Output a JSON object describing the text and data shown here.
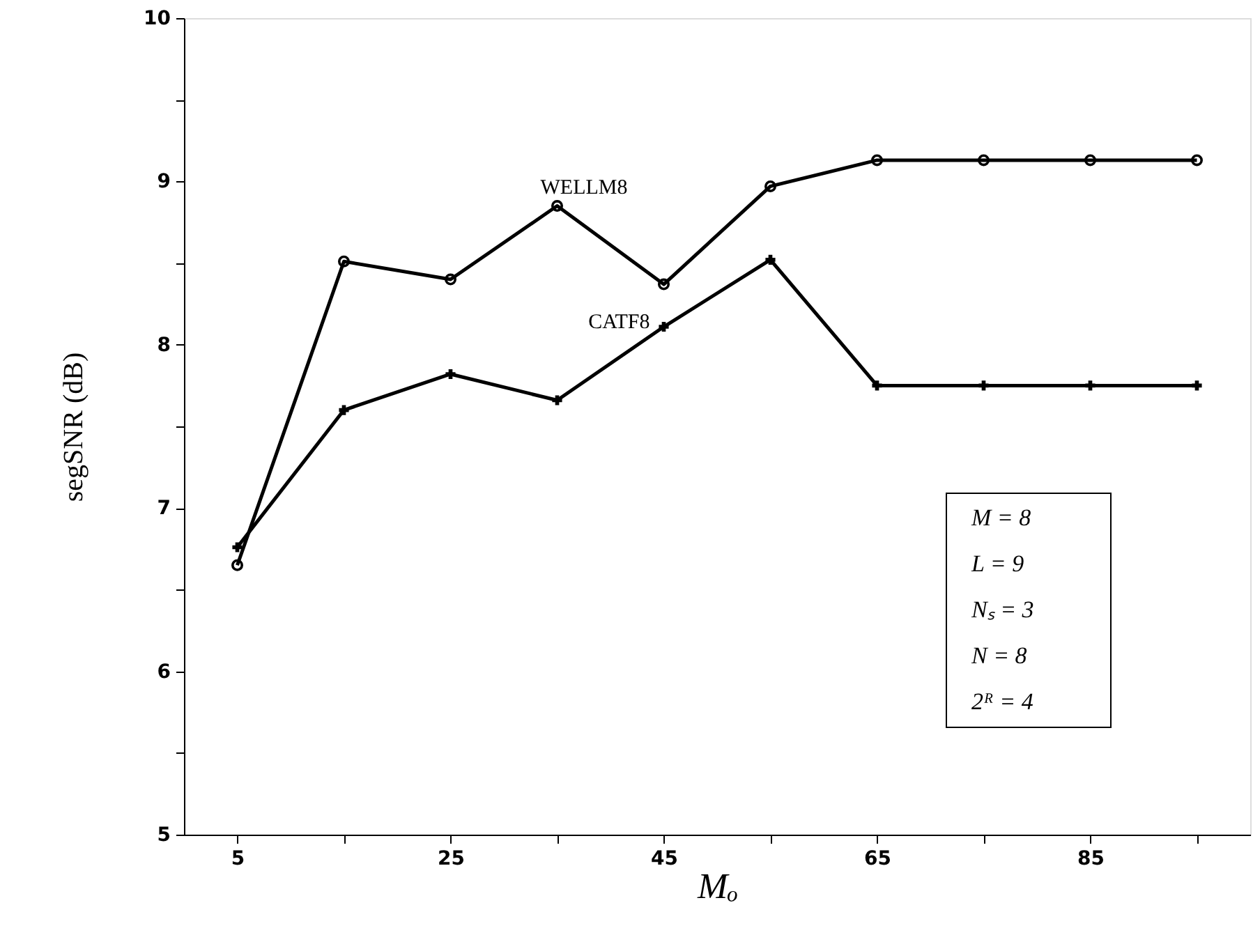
{
  "chart_data": {
    "type": "line",
    "xlabel": "Mₒ",
    "ylabel": "segSNR (dB)",
    "x": [
      5,
      15,
      25,
      35,
      45,
      55,
      65,
      75,
      85,
      95
    ],
    "series": [
      {
        "name": "WELLM8",
        "color": "#000000",
        "marker": "circle",
        "values": [
          6.65,
          8.51,
          8.4,
          8.85,
          8.37,
          8.97,
          9.13,
          9.13,
          9.13,
          9.13
        ]
      },
      {
        "name": "CATF8",
        "color": "#000000",
        "marker": "cross",
        "values": [
          6.76,
          7.6,
          7.82,
          7.66,
          8.11,
          8.52,
          7.75,
          7.75,
          7.75,
          7.75
        ]
      }
    ],
    "xlim": [
      0,
      100
    ],
    "xticks": [
      5,
      {
        "value": 15,
        "label": null
      },
      25,
      {
        "value": 35,
        "label": null
      },
      45,
      {
        "value": 55,
        "label": null
      },
      65,
      {
        "value": 75,
        "label": null
      },
      85,
      {
        "value": 95,
        "label": null
      }
    ],
    "ylim": [
      5,
      10
    ],
    "yticks": [
      5,
      {
        "value": 5.5,
        "label": null
      },
      6,
      {
        "value": 6.5,
        "label": null
      },
      7,
      {
        "value": 7.5,
        "label": null
      },
      8,
      {
        "value": 8.5,
        "label": null
      },
      9,
      {
        "value": 9.5,
        "label": null
      },
      10
    ],
    "annotations": [
      "M  = 8",
      "L  = 9",
      "Nₛ = 3",
      "N  = 8",
      "2ᴿ = 4"
    ],
    "grid": false,
    "line_style": "solid"
  }
}
